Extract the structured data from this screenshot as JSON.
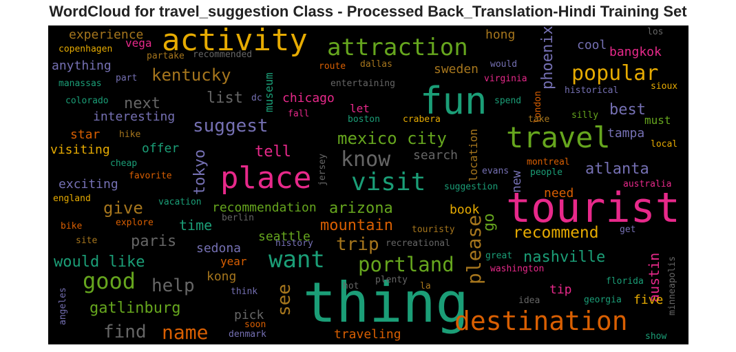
{
  "title": "WordCloud for travel_suggestion Class - Processed Back_Translation-Hindi Training Set",
  "chart_data": {
    "type": "wordcloud",
    "background": "#000000",
    "palette": "Dark2",
    "words": [
      {
        "text": "thing",
        "weight": 1.0,
        "color": "#1b9e77"
      },
      {
        "text": "tourist",
        "weight": 0.95,
        "color": "#e7298a"
      },
      {
        "text": "fun",
        "weight": 0.85,
        "color": "#1b9e77"
      },
      {
        "text": "activity",
        "weight": 0.78,
        "color": "#e6ab02"
      },
      {
        "text": "place",
        "weight": 0.74,
        "color": "#e7298a"
      },
      {
        "text": "travel",
        "weight": 0.72,
        "color": "#66a61e"
      },
      {
        "text": "destination",
        "weight": 0.65,
        "color": "#d95f02"
      },
      {
        "text": "visit",
        "weight": 0.6,
        "color": "#1b9e77"
      },
      {
        "text": "attraction",
        "weight": 0.58,
        "color": "#66a61e"
      },
      {
        "text": "want",
        "weight": 0.55,
        "color": "#1b9e77"
      },
      {
        "text": "good",
        "weight": 0.52,
        "color": "#66a61e"
      },
      {
        "text": "please",
        "weight": 0.46,
        "color": "#a6761d"
      },
      {
        "text": "know",
        "weight": 0.45,
        "color": "#666666"
      },
      {
        "text": "popular",
        "weight": 0.44,
        "color": "#e6ab02"
      },
      {
        "text": "portland",
        "weight": 0.44,
        "color": "#66a61e"
      },
      {
        "text": "name",
        "weight": 0.43,
        "color": "#d95f02"
      },
      {
        "text": "trip",
        "weight": 0.4,
        "color": "#a6761d"
      },
      {
        "text": "suggest",
        "weight": 0.38,
        "color": "#7570b3"
      },
      {
        "text": "find",
        "weight": 0.38,
        "color": "#666666"
      },
      {
        "text": "help",
        "weight": 0.38,
        "color": "#666666"
      },
      {
        "text": "mexico city",
        "weight": 0.34,
        "color": "#66a61e"
      },
      {
        "text": "kentucky",
        "weight": 0.34,
        "color": "#a6761d"
      },
      {
        "text": "recommend",
        "weight": 0.33,
        "color": "#e6ab02"
      },
      {
        "text": "nashville",
        "weight": 0.32,
        "color": "#1b9e77"
      },
      {
        "text": "give",
        "weight": 0.32,
        "color": "#a6761d"
      },
      {
        "text": "would like",
        "weight": 0.32,
        "color": "#1b9e77"
      },
      {
        "text": "see",
        "weight": 0.32,
        "color": "#a6761d"
      },
      {
        "text": "gatlinburg",
        "weight": 0.31,
        "color": "#66a61e"
      },
      {
        "text": "mountain",
        "weight": 0.31,
        "color": "#d95f02"
      },
      {
        "text": "atlanta",
        "weight": 0.3,
        "color": "#7570b3"
      },
      {
        "text": "arizona",
        "weight": 0.3,
        "color": "#66a61e"
      },
      {
        "text": "phoenix",
        "weight": 0.28,
        "color": "#7570b3"
      },
      {
        "text": "best",
        "weight": 0.28,
        "color": "#7570b3"
      },
      {
        "text": "list",
        "weight": 0.28,
        "color": "#666666"
      },
      {
        "text": "next",
        "weight": 0.28,
        "color": "#666666"
      },
      {
        "text": "paris",
        "weight": 0.28,
        "color": "#666666"
      },
      {
        "text": "tell",
        "weight": 0.28,
        "color": "#e7298a"
      },
      {
        "text": "tokyo",
        "weight": 0.28,
        "color": "#7570b3"
      },
      {
        "text": "time",
        "weight": 0.26,
        "color": "#1b9e77"
      },
      {
        "text": "go",
        "weight": 0.26,
        "color": "#66a61e"
      },
      {
        "text": "new",
        "weight": 0.24,
        "color": "#7570b3"
      },
      {
        "text": "austin",
        "weight": 0.23,
        "color": "#e7298a"
      },
      {
        "text": "experience",
        "weight": 0.22,
        "color": "#a6761d"
      },
      {
        "text": "hong",
        "weight": 0.22,
        "color": "#a6761d"
      },
      {
        "text": "cool",
        "weight": 0.22,
        "color": "#7570b3"
      },
      {
        "text": "bangkok",
        "weight": 0.22,
        "color": "#e7298a"
      },
      {
        "text": "anything",
        "weight": 0.22,
        "color": "#7570b3"
      },
      {
        "text": "sweden",
        "weight": 0.22,
        "color": "#a6761d"
      },
      {
        "text": "chicago",
        "weight": 0.22,
        "color": "#e7298a"
      },
      {
        "text": "interesting",
        "weight": 0.22,
        "color": "#7570b3"
      },
      {
        "text": "visiting",
        "weight": 0.22,
        "color": "#e6ab02"
      },
      {
        "text": "star",
        "weight": 0.22,
        "color": "#d95f02"
      },
      {
        "text": "offer",
        "weight": 0.22,
        "color": "#1b9e77"
      },
      {
        "text": "exciting",
        "weight": 0.22,
        "color": "#7570b3"
      },
      {
        "text": "search",
        "weight": 0.22,
        "color": "#666666"
      },
      {
        "text": "book",
        "weight": 0.22,
        "color": "#e6ab02"
      },
      {
        "text": "recommendation",
        "weight": 0.22,
        "color": "#66a61e"
      },
      {
        "text": "seattle",
        "weight": 0.22,
        "color": "#66a61e"
      },
      {
        "text": "sedona",
        "weight": 0.22,
        "color": "#7570b3"
      },
      {
        "text": "tampa",
        "weight": 0.22,
        "color": "#7570b3"
      },
      {
        "text": "must",
        "weight": 0.2,
        "color": "#66a61e"
      },
      {
        "text": "need",
        "weight": 0.2,
        "color": "#d95f02"
      },
      {
        "text": "location",
        "weight": 0.18,
        "color": "#a6761d"
      },
      {
        "text": "museum",
        "weight": 0.18,
        "color": "#1b9e77"
      },
      {
        "text": "tip",
        "weight": 0.2,
        "color": "#e7298a"
      },
      {
        "text": "five",
        "weight": 0.2,
        "color": "#e6ab02"
      },
      {
        "text": "kong",
        "weight": 0.2,
        "color": "#a6761d"
      },
      {
        "text": "pick",
        "weight": 0.2,
        "color": "#666666"
      },
      {
        "text": "year",
        "weight": 0.18,
        "color": "#d95f02"
      },
      {
        "text": "traveling",
        "weight": 0.18,
        "color": "#d95f02"
      },
      {
        "text": "vega",
        "weight": 0.16,
        "color": "#e7298a"
      },
      {
        "text": "let",
        "weight": 0.16,
        "color": "#e7298a"
      },
      {
        "text": "copenhagen",
        "weight": 0.14,
        "color": "#e6ab02"
      },
      {
        "text": "partake",
        "weight": 0.14,
        "color": "#a6761d"
      },
      {
        "text": "recommended",
        "weight": 0.14,
        "color": "#666666"
      },
      {
        "text": "route",
        "weight": 0.14,
        "color": "#d95f02"
      },
      {
        "text": "dallas",
        "weight": 0.14,
        "color": "#a6761d"
      },
      {
        "text": "would",
        "weight": 0.14,
        "color": "#7570b3"
      },
      {
        "text": "los",
        "weight": 0.14,
        "color": "#666666"
      },
      {
        "text": "london",
        "weight": 0.14,
        "color": "#d95f02"
      },
      {
        "text": "virginia",
        "weight": 0.14,
        "color": "#e7298a"
      },
      {
        "text": "manassas",
        "weight": 0.14,
        "color": "#1b9e77"
      },
      {
        "text": "part",
        "weight": 0.14,
        "color": "#7570b3"
      },
      {
        "text": "entertaining",
        "weight": 0.14,
        "color": "#666666"
      },
      {
        "text": "historical",
        "weight": 0.14,
        "color": "#7570b3"
      },
      {
        "text": "sioux",
        "weight": 0.14,
        "color": "#e6ab02"
      },
      {
        "text": "colorado",
        "weight": 0.14,
        "color": "#1b9e77"
      },
      {
        "text": "dc",
        "weight": 0.14,
        "color": "#7570b3"
      },
      {
        "text": "fall",
        "weight": 0.14,
        "color": "#e7298a"
      },
      {
        "text": "spend",
        "weight": 0.14,
        "color": "#1b9e77"
      },
      {
        "text": "boston",
        "weight": 0.14,
        "color": "#1b9e77"
      },
      {
        "text": "crabera",
        "weight": 0.14,
        "color": "#e6ab02"
      },
      {
        "text": "take",
        "weight": 0.14,
        "color": "#a6761d"
      },
      {
        "text": "silly",
        "weight": 0.14,
        "color": "#66a61e"
      },
      {
        "text": "local",
        "weight": 0.14,
        "color": "#e6ab02"
      },
      {
        "text": "hike",
        "weight": 0.14,
        "color": "#a6761d"
      },
      {
        "text": "cheap",
        "weight": 0.14,
        "color": "#1b9e77"
      },
      {
        "text": "jersey",
        "weight": 0.14,
        "color": "#666666"
      },
      {
        "text": "evans",
        "weight": 0.14,
        "color": "#7570b3"
      },
      {
        "text": "montreal",
        "weight": 0.14,
        "color": "#d95f02"
      },
      {
        "text": "people",
        "weight": 0.14,
        "color": "#1b9e77"
      },
      {
        "text": "favorite",
        "weight": 0.14,
        "color": "#d95f02"
      },
      {
        "text": "suggestion",
        "weight": 0.14,
        "color": "#1b9e77"
      },
      {
        "text": "australia",
        "weight": 0.14,
        "color": "#e7298a"
      },
      {
        "text": "england",
        "weight": 0.14,
        "color": "#e6ab02"
      },
      {
        "text": "vacation",
        "weight": 0.14,
        "color": "#1b9e77"
      },
      {
        "text": "berlin",
        "weight": 0.14,
        "color": "#666666"
      },
      {
        "text": "bike",
        "weight": 0.14,
        "color": "#d95f02"
      },
      {
        "text": "explore",
        "weight": 0.14,
        "color": "#d95f02"
      },
      {
        "text": "touristy",
        "weight": 0.14,
        "color": "#a6761d"
      },
      {
        "text": "get",
        "weight": 0.14,
        "color": "#7570b3"
      },
      {
        "text": "site",
        "weight": 0.14,
        "color": "#a6761d"
      },
      {
        "text": "history",
        "weight": 0.14,
        "color": "#7570b3"
      },
      {
        "text": "recreational",
        "weight": 0.14,
        "color": "#666666"
      },
      {
        "text": "great",
        "weight": 0.14,
        "color": "#1b9e77"
      },
      {
        "text": "washington",
        "weight": 0.14,
        "color": "#e7298a"
      },
      {
        "text": "minneapolis",
        "weight": 0.14,
        "color": "#666666"
      },
      {
        "text": "plenty",
        "weight": 0.14,
        "color": "#666666"
      },
      {
        "text": "hot",
        "weight": 0.14,
        "color": "#666666"
      },
      {
        "text": "la",
        "weight": 0.14,
        "color": "#a6761d"
      },
      {
        "text": "florida",
        "weight": 0.14,
        "color": "#1b9e77"
      },
      {
        "text": "think",
        "weight": 0.14,
        "color": "#7570b3"
      },
      {
        "text": "angeles",
        "weight": 0.14,
        "color": "#7570b3"
      },
      {
        "text": "soon",
        "weight": 0.14,
        "color": "#d95f02"
      },
      {
        "text": "idea",
        "weight": 0.14,
        "color": "#666666"
      },
      {
        "text": "georgia",
        "weight": 0.14,
        "color": "#1b9e77"
      },
      {
        "text": "denmark",
        "weight": 0.14,
        "color": "#7570b3"
      },
      {
        "text": "show",
        "weight": 0.14,
        "color": "#1b9e77"
      }
    ]
  }
}
